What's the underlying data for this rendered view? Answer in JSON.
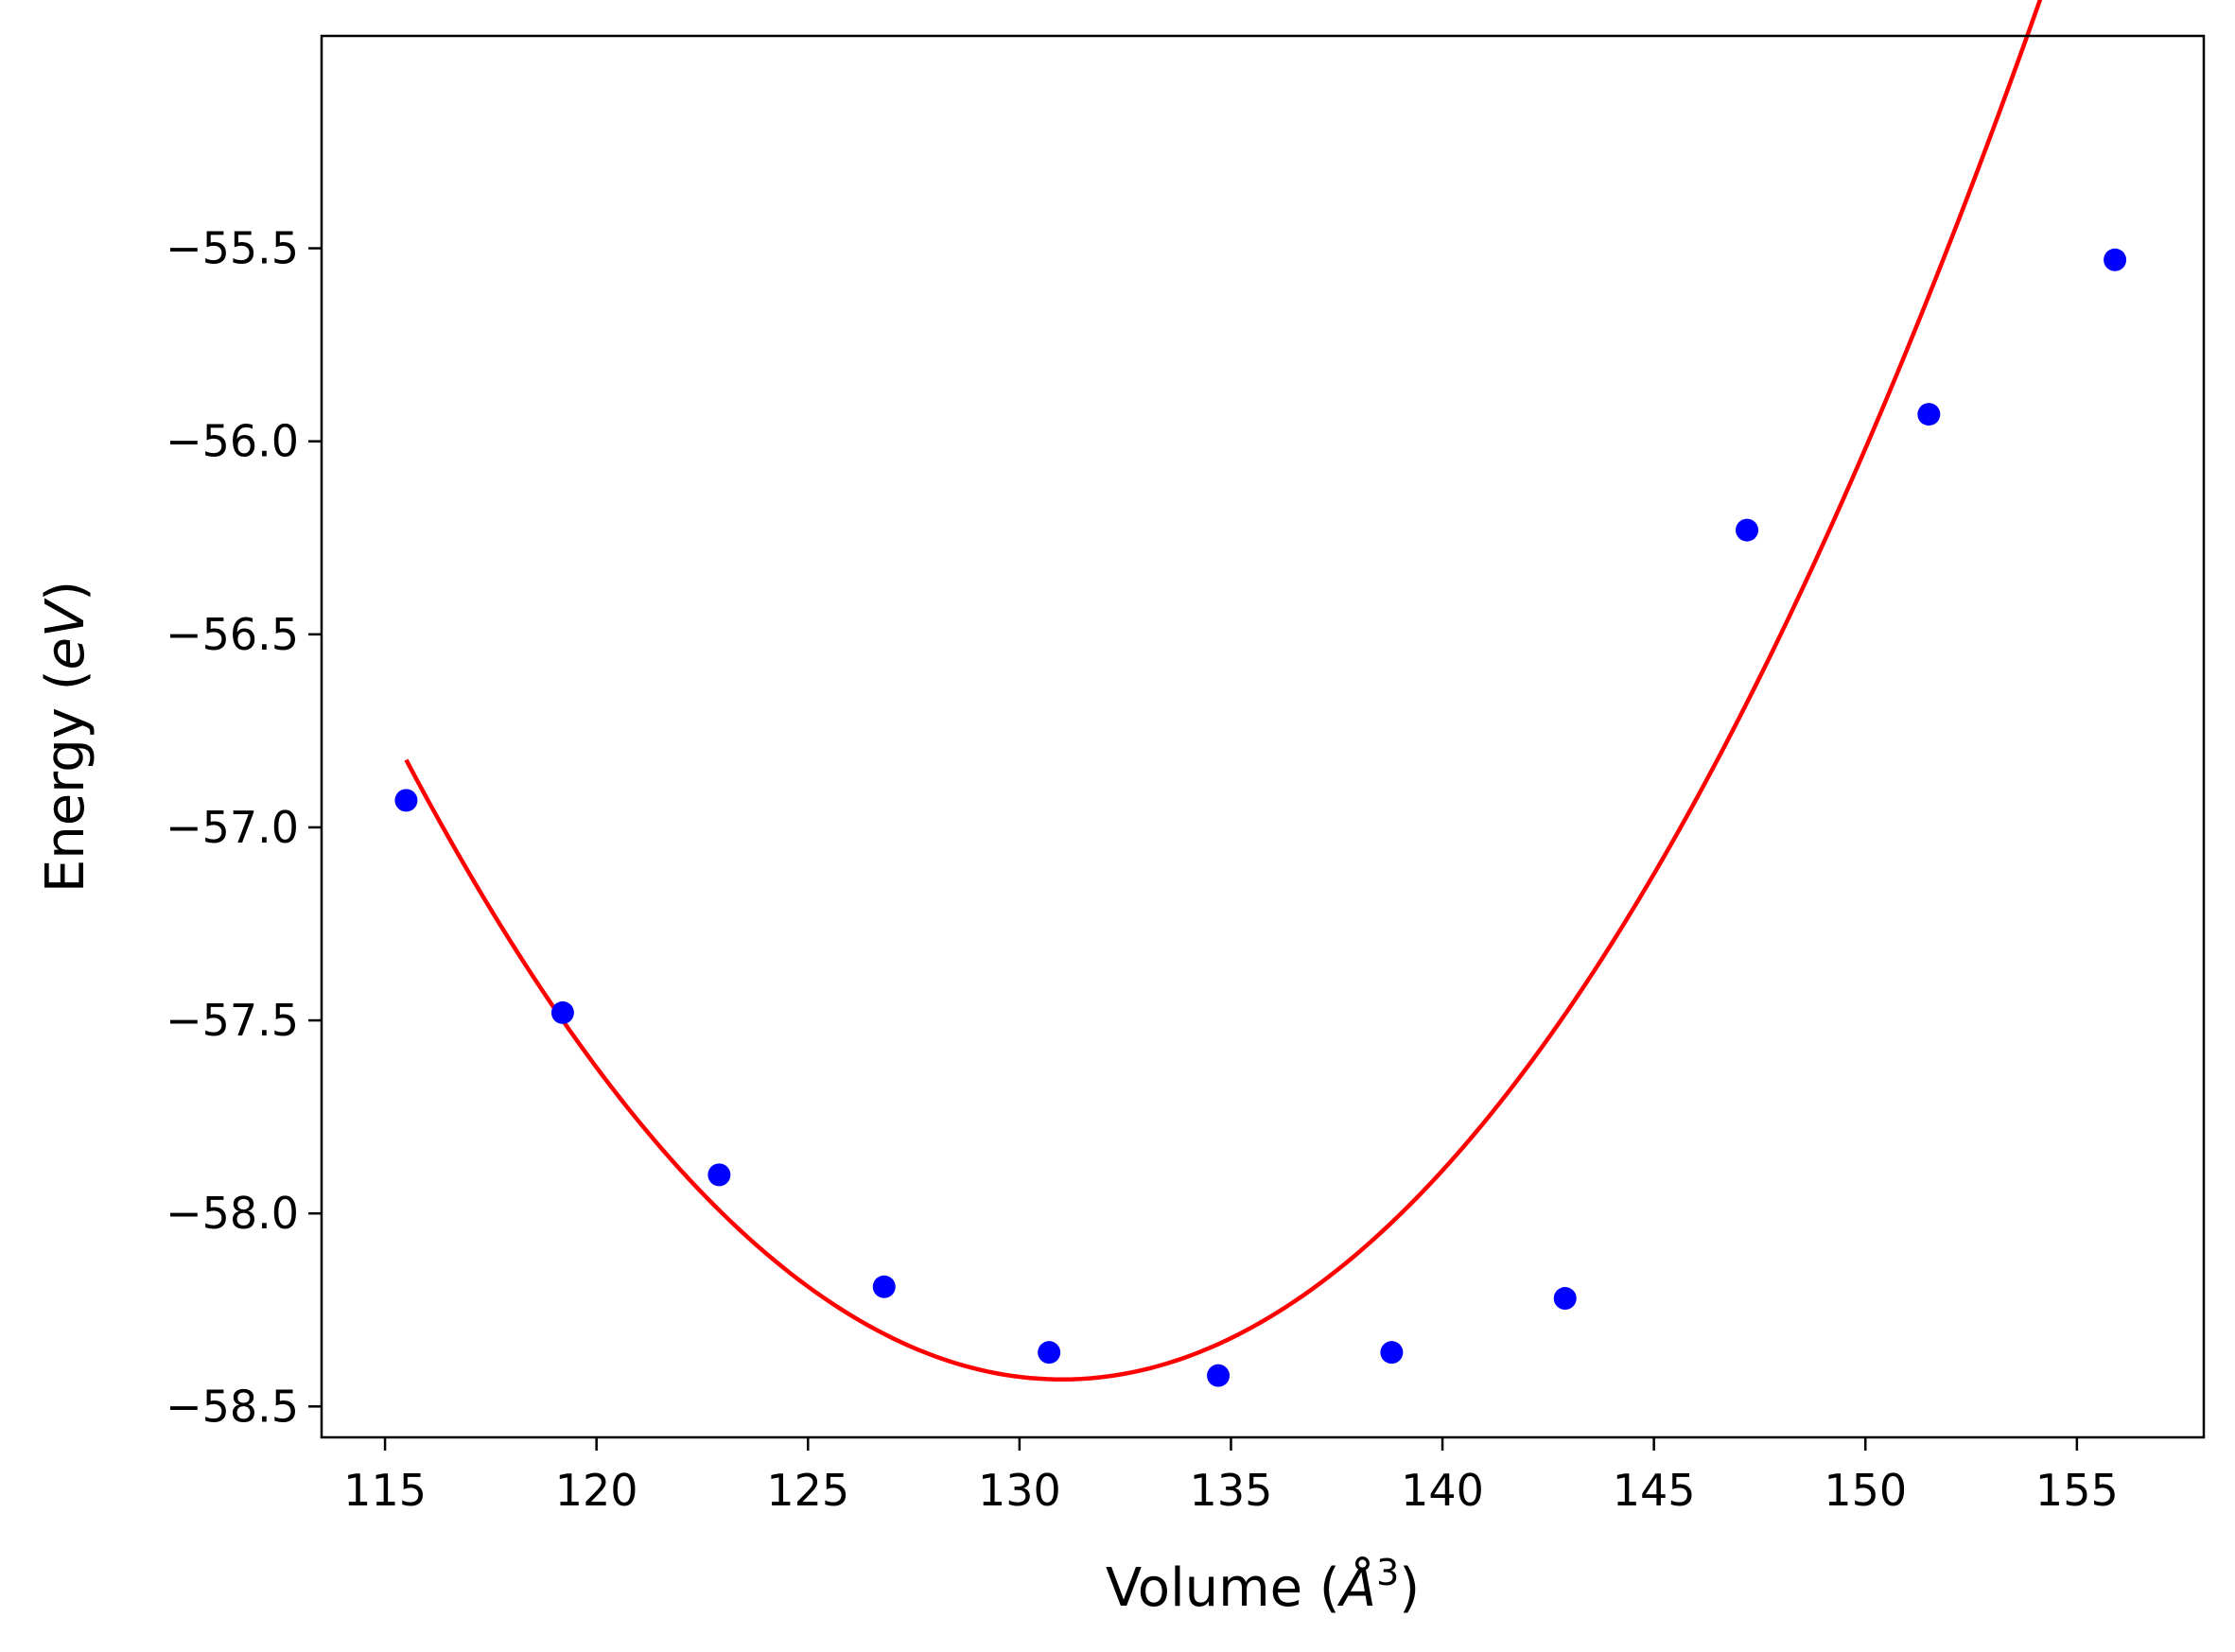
{
  "chart_data": {
    "type": "scatter",
    "title": "",
    "xlabel": {
      "prefix": "Volume (",
      "symbol": "Å",
      "sup": "3",
      "suffix": ")"
    },
    "ylabel": {
      "prefix": "Energy (",
      "unit": "eV",
      "suffix": ")"
    },
    "xlim": [
      113.5,
      158.0
    ],
    "ylim": [
      -58.58,
      -54.95
    ],
    "xticks": [
      115,
      120,
      125,
      130,
      135,
      140,
      145,
      150,
      155
    ],
    "yticks": [
      -55.5,
      -56.0,
      -56.5,
      -57.0,
      -57.5,
      -58.0,
      -58.5
    ],
    "grid": false,
    "legend": "none",
    "series": [
      {
        "kind": "scatter",
        "color": "#0000ff",
        "x": [
          115.5,
          119.2,
          122.9,
          126.8,
          130.7,
          134.7,
          138.8,
          142.9,
          147.2,
          151.5,
          155.9
        ],
        "y": [
          -56.93,
          -57.48,
          -57.9,
          -58.19,
          -58.36,
          -58.42,
          -58.36,
          -58.22,
          -56.23,
          -55.93,
          -55.53
        ]
      },
      {
        "kind": "line",
        "color": "#ff0000",
        "fit": "quadratic",
        "coefficients": {
          "a": 0.00668,
          "v0": 131.0,
          "e0": -58.43
        },
        "x_range": [
          115.5,
          155.9
        ]
      }
    ]
  }
}
